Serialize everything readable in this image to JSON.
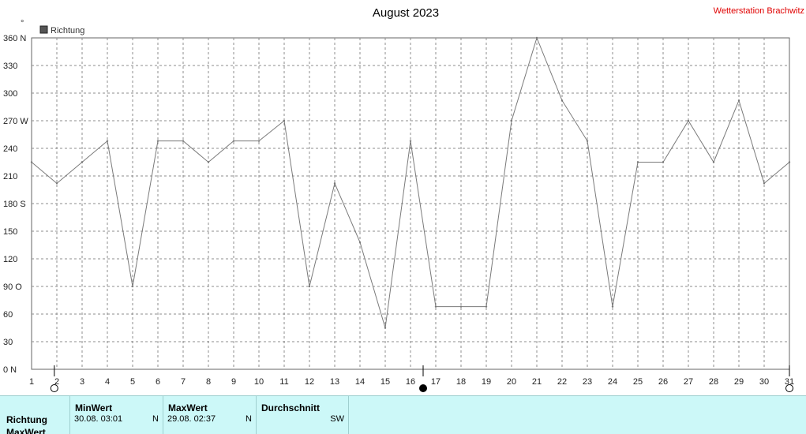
{
  "page": {
    "title": "August 2023",
    "station": "Wetterstation Brachwitz",
    "degree_symbol": "°"
  },
  "chart_data": {
    "type": "line",
    "title": "August 2023",
    "series": [
      {
        "name": "Richtung",
        "color": "#7a7a7a",
        "x": [
          1,
          2,
          3,
          4,
          5,
          6,
          7,
          8,
          9,
          10,
          11,
          12,
          13,
          14,
          15,
          16,
          17,
          18,
          19,
          20,
          21,
          22,
          23,
          24,
          25,
          26,
          27,
          28,
          29,
          30,
          31
        ],
        "values": [
          225,
          202,
          225,
          248,
          90,
          248,
          248,
          225,
          248,
          248,
          270,
          90,
          202,
          138,
          45,
          248,
          68,
          68,
          68,
          270,
          360,
          292,
          248,
          68,
          225,
          225,
          270,
          225,
          292,
          202,
          225
        ]
      }
    ],
    "ylim": [
      0,
      360
    ],
    "xlim": [
      1,
      31
    ],
    "yticks": [
      {
        "value": 360,
        "label": "360 N"
      },
      {
        "value": 330,
        "label": "330"
      },
      {
        "value": 300,
        "label": "300"
      },
      {
        "value": 270,
        "label": "270 W"
      },
      {
        "value": 240,
        "label": "240"
      },
      {
        "value": 210,
        "label": "210"
      },
      {
        "value": 180,
        "label": "180 S"
      },
      {
        "value": 150,
        "label": "150"
      },
      {
        "value": 120,
        "label": "120"
      },
      {
        "value": 90,
        "label": "90  O"
      },
      {
        "value": 60,
        "label": "60"
      },
      {
        "value": 30,
        "label": "30"
      },
      {
        "value": 0,
        "label": "0   N"
      }
    ],
    "xticks": [
      "1",
      "2",
      "3",
      "4",
      "5",
      "6",
      "7",
      "8",
      "9",
      "10",
      "11",
      "12",
      "13",
      "14",
      "15",
      "16",
      "17",
      "18",
      "19",
      "20",
      "21",
      "22",
      "23",
      "24",
      "25",
      "26",
      "27",
      "28",
      "29",
      "30",
      "31"
    ],
    "grid": true,
    "legend": "top-left",
    "moon_markers": [
      {
        "x": 1.9,
        "phase": "full"
      },
      {
        "x": 16.5,
        "phase": "new"
      },
      {
        "x": 31,
        "phase": "full"
      }
    ]
  },
  "stats": {
    "row_label": "Richtung",
    "row_label2": "MaxWert",
    "columns": [
      {
        "head": "MinWert",
        "value": "30.08.  03:01",
        "dir": "N"
      },
      {
        "head": "MaxWert",
        "value": "29.08.  02:37",
        "dir": "N"
      },
      {
        "head": "Durchschnitt",
        "value": "",
        "dir": "SW"
      }
    ]
  }
}
